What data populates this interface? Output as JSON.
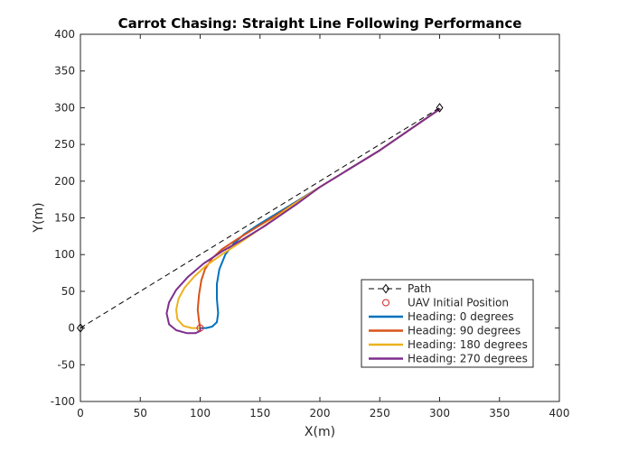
{
  "chart_data": {
    "type": "line",
    "title": "Carrot Chasing: Straight Line Following Performance",
    "xlabel": "X(m)",
    "ylabel": "Y(m)",
    "xlim": [
      0,
      400
    ],
    "ylim": [
      -100,
      400
    ],
    "xticks": [
      0,
      50,
      100,
      150,
      200,
      250,
      300,
      350,
      400
    ],
    "yticks": [
      -100,
      -50,
      0,
      50,
      100,
      150,
      200,
      250,
      300,
      350,
      400
    ],
    "grid": false,
    "legend_position": "bottom-right",
    "path": {
      "name": "Path",
      "color": "#000000",
      "style": "dashed",
      "marker": "diamond",
      "points": [
        [
          0,
          0
        ],
        [
          300,
          300
        ]
      ]
    },
    "initial_position": {
      "name": "UAV Initial Position",
      "color": "#d62728",
      "marker": "circle",
      "point": [
        100,
        0
      ]
    },
    "series": [
      {
        "name": "Heading: 0 degrees",
        "color": "#0072bd",
        "points": [
          [
            100,
            0
          ],
          [
            105,
            0
          ],
          [
            110,
            2
          ],
          [
            114,
            8
          ],
          [
            115,
            20
          ],
          [
            114,
            40
          ],
          [
            114,
            60
          ],
          [
            116,
            80
          ],
          [
            121,
            100
          ],
          [
            128,
            115
          ],
          [
            137,
            128
          ],
          [
            148,
            140
          ],
          [
            160,
            152
          ],
          [
            175,
            167
          ],
          [
            200,
            192
          ],
          [
            250,
            242
          ],
          [
            300,
            298
          ]
        ]
      },
      {
        "name": "Heading: 90 degrees",
        "color": "#d95319",
        "points": [
          [
            100,
            0
          ],
          [
            99,
            10
          ],
          [
            98,
            25
          ],
          [
            99,
            45
          ],
          [
            101,
            65
          ],
          [
            104,
            80
          ],
          [
            110,
            95
          ],
          [
            118,
            107
          ],
          [
            130,
            120
          ],
          [
            145,
            135
          ],
          [
            165,
            155
          ],
          [
            200,
            192
          ],
          [
            250,
            242
          ],
          [
            300,
            298
          ]
        ]
      },
      {
        "name": "Heading: 180 degrees",
        "color": "#edb120",
        "points": [
          [
            100,
            0
          ],
          [
            93,
            0
          ],
          [
            86,
            3
          ],
          [
            81,
            12
          ],
          [
            80,
            25
          ],
          [
            82,
            40
          ],
          [
            87,
            55
          ],
          [
            95,
            70
          ],
          [
            105,
            85
          ],
          [
            118,
            100
          ],
          [
            132,
            115
          ],
          [
            150,
            135
          ],
          [
            175,
            165
          ],
          [
            200,
            192
          ],
          [
            250,
            242
          ],
          [
            300,
            298
          ]
        ]
      },
      {
        "name": "Heading: 270 degrees",
        "color": "#7e2f8e",
        "points": [
          [
            100,
            0
          ],
          [
            100,
            -4
          ],
          [
            96,
            -7
          ],
          [
            89,
            -7
          ],
          [
            80,
            -3
          ],
          [
            74,
            5
          ],
          [
            72,
            20
          ],
          [
            74,
            35
          ],
          [
            80,
            52
          ],
          [
            90,
            70
          ],
          [
            103,
            88
          ],
          [
            118,
            104
          ],
          [
            135,
            120
          ],
          [
            155,
            140
          ],
          [
            180,
            168
          ],
          [
            200,
            192
          ],
          [
            250,
            242
          ],
          [
            300,
            298
          ]
        ]
      }
    ]
  }
}
